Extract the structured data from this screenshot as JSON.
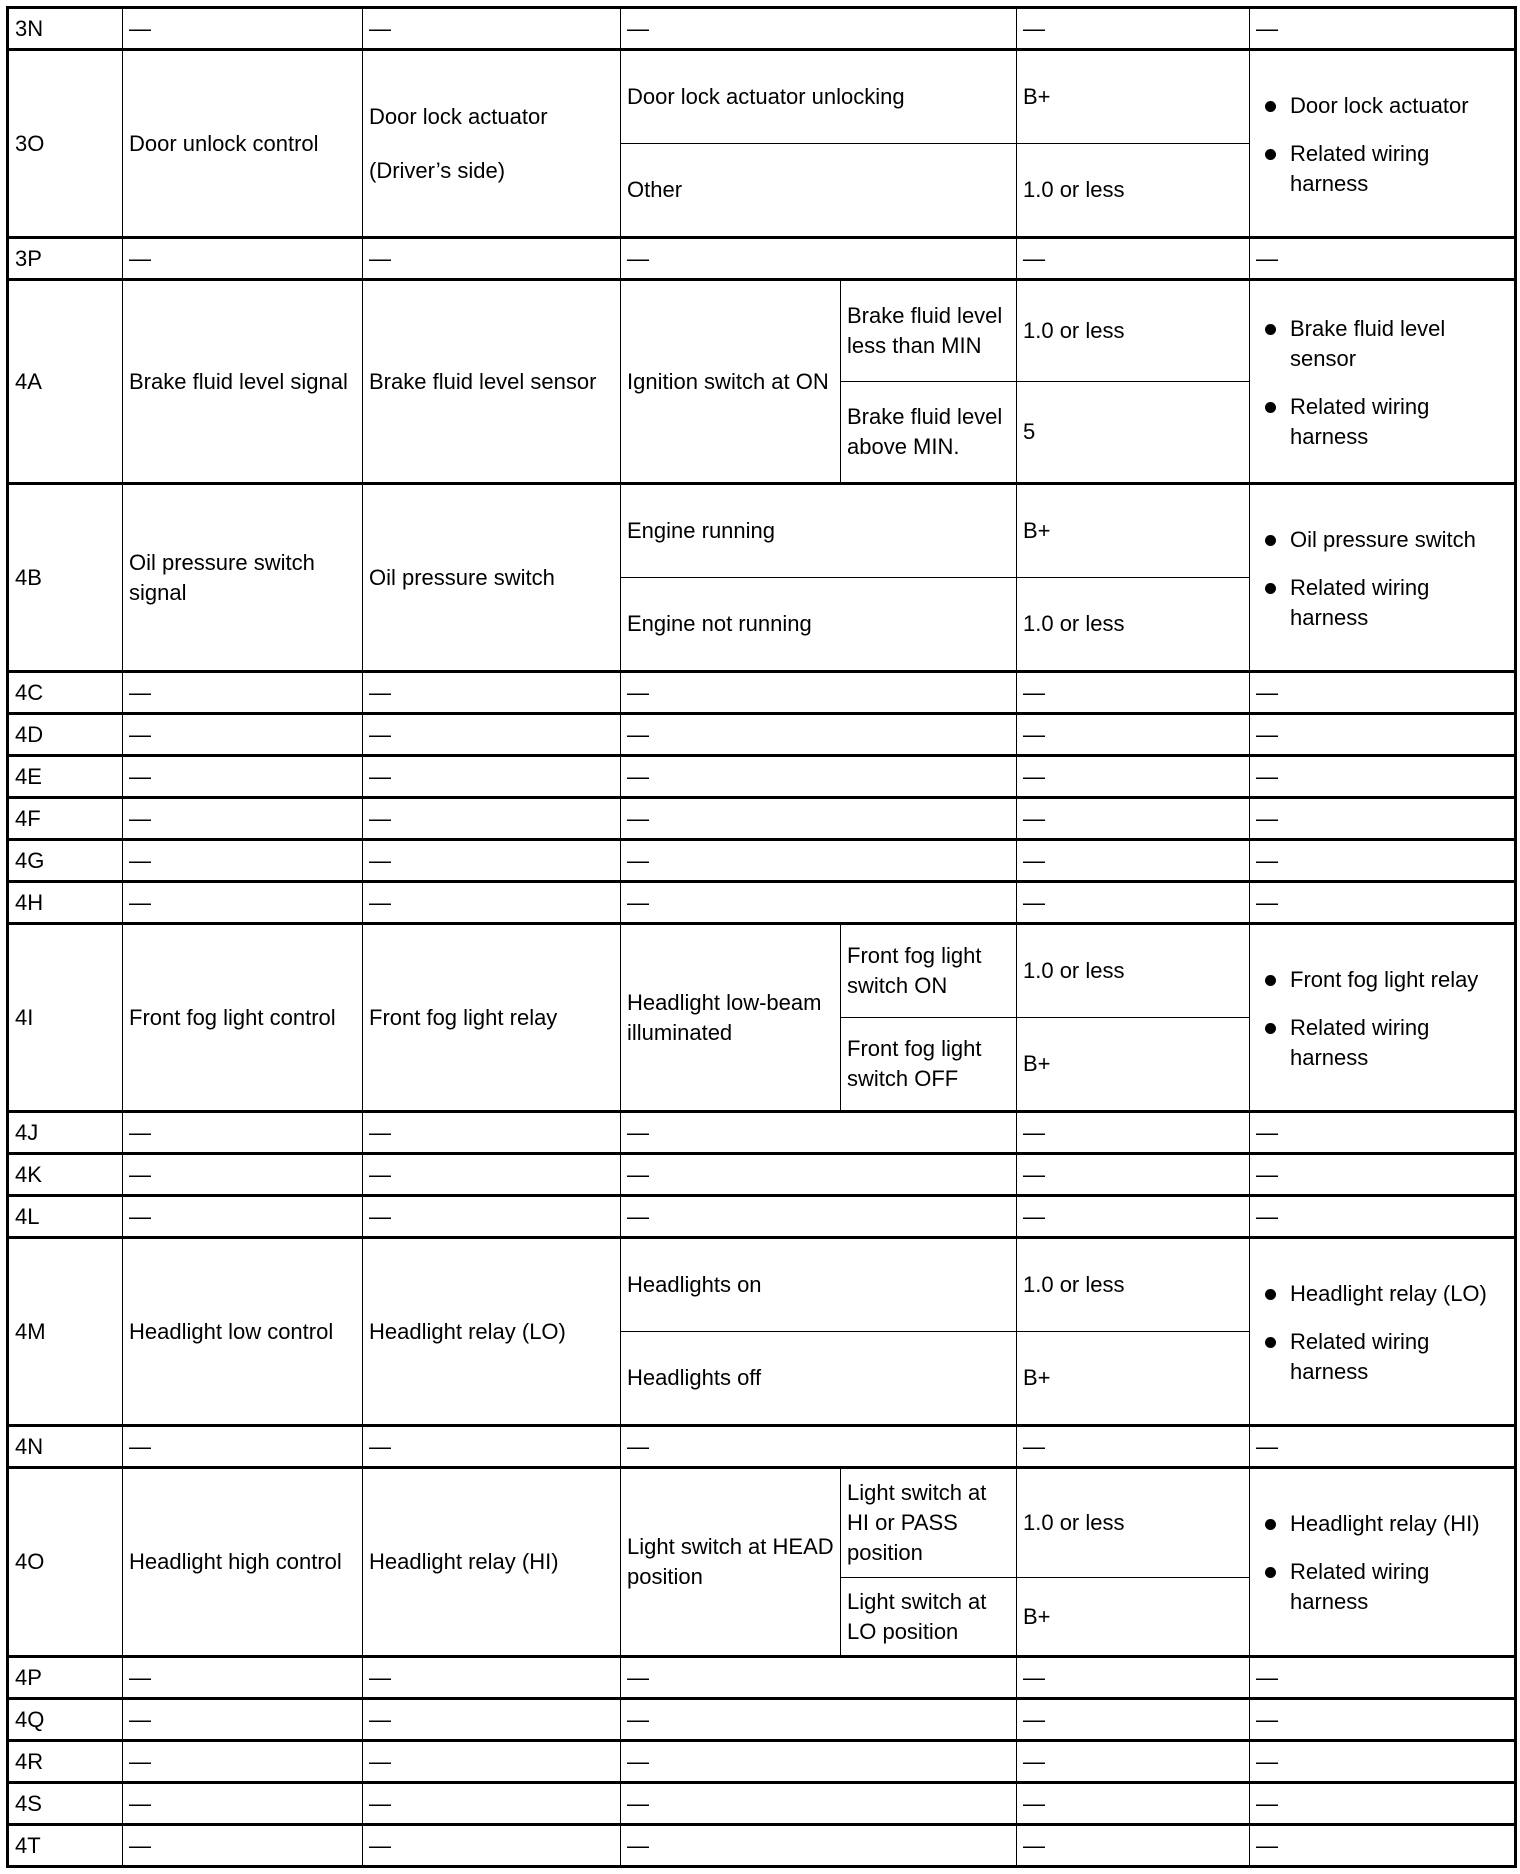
{
  "table": {
    "rows": [
      {
        "terminal": "3N",
        "signal": "—",
        "component": [
          "—"
        ],
        "conditions": [
          {
            "condition": "—",
            "value": "—"
          }
        ],
        "check": [
          "—"
        ]
      },
      {
        "terminal": "3O",
        "signal": "Door unlock control",
        "component": [
          "Door lock actuator",
          "(Driver’s side)"
        ],
        "conditions": [
          {
            "condition": "Door lock actuator unlocking",
            "value": "B+"
          },
          {
            "condition": "Other",
            "value": "1.0 or less"
          }
        ],
        "check": [
          "Door lock actuator",
          "Related wiring harness"
        ]
      },
      {
        "terminal": "3P",
        "signal": "—",
        "component": [
          "—"
        ],
        "conditions": [
          {
            "condition": "—",
            "value": "—"
          }
        ],
        "check": [
          "—"
        ]
      },
      {
        "terminal": "4A",
        "signal": "Brake fluid level signal",
        "component": [
          "Brake fluid level sensor"
        ],
        "main_condition": "Ignition switch at ON",
        "conditions": [
          {
            "condition": "Brake fluid level less than MIN",
            "value": "1.0 or less"
          },
          {
            "condition": "Brake fluid level above MIN.",
            "value": "5"
          }
        ],
        "check": [
          "Brake fluid level sensor",
          "Related wiring harness"
        ]
      },
      {
        "terminal": "4B",
        "signal": "Oil pressure switch signal",
        "component": [
          "Oil pressure switch"
        ],
        "conditions": [
          {
            "condition": "Engine running",
            "value": "B+"
          },
          {
            "condition": "Engine not running",
            "value": "1.0 or less"
          }
        ],
        "check": [
          "Oil pressure switch",
          "Related wiring harness"
        ]
      },
      {
        "terminal": "4C",
        "signal": "—",
        "component": [
          "—"
        ],
        "conditions": [
          {
            "condition": "—",
            "value": "—"
          }
        ],
        "check": [
          "—"
        ]
      },
      {
        "terminal": "4D",
        "signal": "—",
        "component": [
          "—"
        ],
        "conditions": [
          {
            "condition": "—",
            "value": "—"
          }
        ],
        "check": [
          "—"
        ]
      },
      {
        "terminal": "4E",
        "signal": "—",
        "component": [
          "—"
        ],
        "conditions": [
          {
            "condition": "—",
            "value": "—"
          }
        ],
        "check": [
          "—"
        ]
      },
      {
        "terminal": "4F",
        "signal": "—",
        "component": [
          "—"
        ],
        "conditions": [
          {
            "condition": "—",
            "value": "—"
          }
        ],
        "check": [
          "—"
        ]
      },
      {
        "terminal": "4G",
        "signal": "—",
        "component": [
          "—"
        ],
        "conditions": [
          {
            "condition": "—",
            "value": "—"
          }
        ],
        "check": [
          "—"
        ]
      },
      {
        "terminal": "4H",
        "signal": "—",
        "component": [
          "—"
        ],
        "conditions": [
          {
            "condition": "—",
            "value": "—"
          }
        ],
        "check": [
          "—"
        ]
      },
      {
        "terminal": "4I",
        "signal": "Front fog light control",
        "component": [
          "Front fog light relay"
        ],
        "main_condition": "Headlight low-beam illuminated",
        "conditions": [
          {
            "condition": "Front fog light switch ON",
            "value": "1.0 or less"
          },
          {
            "condition": "Front fog light switch OFF",
            "value": "B+"
          }
        ],
        "check": [
          "Front fog light relay",
          "Related wiring harness"
        ]
      },
      {
        "terminal": "4J",
        "signal": "—",
        "component": [
          "—"
        ],
        "conditions": [
          {
            "condition": "—",
            "value": "—"
          }
        ],
        "check": [
          "—"
        ]
      },
      {
        "terminal": "4K",
        "signal": "—",
        "component": [
          "—"
        ],
        "conditions": [
          {
            "condition": "—",
            "value": "—"
          }
        ],
        "check": [
          "—"
        ]
      },
      {
        "terminal": "4L",
        "signal": "—",
        "component": [
          "—"
        ],
        "conditions": [
          {
            "condition": "—",
            "value": "—"
          }
        ],
        "check": [
          "—"
        ]
      },
      {
        "terminal": "4M",
        "signal": "Headlight low control",
        "component": [
          "Headlight relay (LO)"
        ],
        "conditions": [
          {
            "condition": "Headlights on",
            "value": "1.0 or less"
          },
          {
            "condition": "Headlights off",
            "value": "B+"
          }
        ],
        "check": [
          "Headlight relay (LO)",
          "Related wiring harness"
        ]
      },
      {
        "terminal": "4N",
        "signal": "—",
        "component": [
          "—"
        ],
        "conditions": [
          {
            "condition": "—",
            "value": "—"
          }
        ],
        "check": [
          "—"
        ]
      },
      {
        "terminal": "4O",
        "signal": "Headlight high control",
        "component": [
          "Headlight relay (HI)"
        ],
        "main_condition": "Light switch at HEAD position",
        "conditions": [
          {
            "condition": "Light switch at HI or PASS position",
            "value": "1.0 or less"
          },
          {
            "condition": "Light switch at LO position",
            "value": "B+"
          }
        ],
        "check": [
          "Headlight relay (HI)",
          "Related wiring harness"
        ]
      },
      {
        "terminal": "4P",
        "signal": "—",
        "component": [
          "—"
        ],
        "conditions": [
          {
            "condition": "—",
            "value": "—"
          }
        ],
        "check": [
          "—"
        ]
      },
      {
        "terminal": "4Q",
        "signal": "—",
        "component": [
          "—"
        ],
        "conditions": [
          {
            "condition": "—",
            "value": "—"
          }
        ],
        "check": [
          "—"
        ]
      },
      {
        "terminal": "4R",
        "signal": "—",
        "component": [
          "—"
        ],
        "conditions": [
          {
            "condition": "—",
            "value": "—"
          }
        ],
        "check": [
          "—"
        ]
      },
      {
        "terminal": "4S",
        "signal": "—",
        "component": [
          "—"
        ],
        "conditions": [
          {
            "condition": "—",
            "value": "—"
          }
        ],
        "check": [
          "—"
        ]
      },
      {
        "terminal": "4T",
        "signal": "—",
        "component": [
          "—"
        ],
        "conditions": [
          {
            "condition": "—",
            "value": "—"
          }
        ],
        "check": [
          "—"
        ]
      }
    ]
  }
}
